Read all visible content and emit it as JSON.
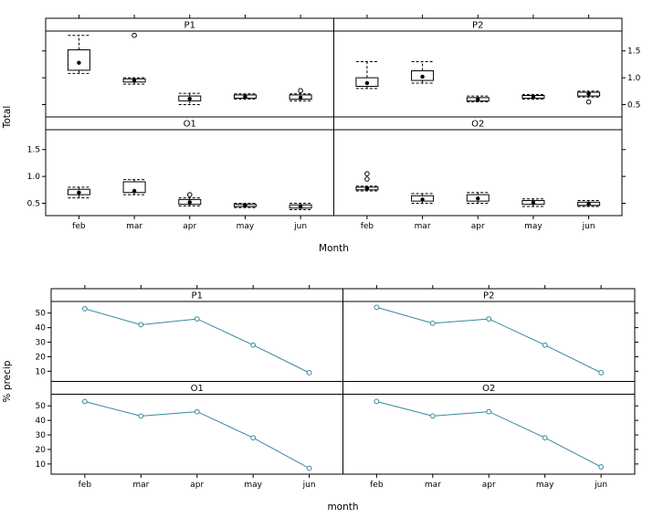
{
  "page": {
    "background": "#ffffff"
  },
  "colors": {
    "frame": "#000000",
    "box_stroke": "#000000",
    "line": "#35889e"
  },
  "chart_data": [
    {
      "type": "bar",
      "subtype": "lattice-boxplot",
      "title": "",
      "xlabel": "Month",
      "ylabel": "Total",
      "categories": [
        "feb",
        "mar",
        "apr",
        "may",
        "jun"
      ],
      "ylim": [
        0.27,
        1.87
      ],
      "yticks": [
        0.5,
        1.0,
        1.5
      ],
      "grid": "off",
      "legend": "none",
      "panel_grid": [
        [
          "P1",
          "P2"
        ],
        [
          "O1",
          "O2"
        ]
      ],
      "panels": {
        "P1": {
          "boxes": [
            {
              "q1": 1.14,
              "q3": 1.52,
              "median": 1.28,
              "lo": 1.08,
              "hi": 1.79,
              "outliers": []
            },
            {
              "q1": 0.92,
              "q3": 0.98,
              "median": 0.95,
              "lo": 0.88,
              "hi": 1.0,
              "outliers": [
                1.79
              ]
            },
            {
              "q1": 0.57,
              "q3": 0.66,
              "median": 0.61,
              "lo": 0.5,
              "hi": 0.71,
              "outliers": []
            },
            {
              "q1": 0.62,
              "q3": 0.68,
              "median": 0.65,
              "lo": 0.6,
              "hi": 0.7,
              "outliers": []
            },
            {
              "q1": 0.6,
              "q3": 0.68,
              "median": 0.63,
              "lo": 0.57,
              "hi": 0.7,
              "outliers": [
                0.76
              ]
            }
          ]
        },
        "P2": {
          "boxes": [
            {
              "q1": 0.84,
              "q3": 1.0,
              "median": 0.9,
              "lo": 0.8,
              "hi": 1.3,
              "outliers": []
            },
            {
              "q1": 0.95,
              "q3": 1.13,
              "median": 1.02,
              "lo": 0.9,
              "hi": 1.3,
              "outliers": []
            },
            {
              "q1": 0.57,
              "q3": 0.63,
              "median": 0.6,
              "lo": 0.55,
              "hi": 0.66,
              "outliers": []
            },
            {
              "q1": 0.62,
              "q3": 0.67,
              "median": 0.64,
              "lo": 0.6,
              "hi": 0.69,
              "outliers": []
            },
            {
              "q1": 0.66,
              "q3": 0.73,
              "median": 0.7,
              "lo": 0.64,
              "hi": 0.75,
              "outliers": [
                0.55
              ]
            }
          ]
        },
        "O1": {
          "boxes": [
            {
              "q1": 0.66,
              "q3": 0.76,
              "median": 0.7,
              "lo": 0.6,
              "hi": 0.8,
              "outliers": []
            },
            {
              "q1": 0.7,
              "q3": 0.9,
              "median": 0.73,
              "lo": 0.66,
              "hi": 0.94,
              "outliers": []
            },
            {
              "q1": 0.48,
              "q3": 0.57,
              "median": 0.52,
              "lo": 0.45,
              "hi": 0.6,
              "outliers": [
                0.66
              ]
            },
            {
              "q1": 0.44,
              "q3": 0.48,
              "median": 0.46,
              "lo": 0.42,
              "hi": 0.5,
              "outliers": []
            },
            {
              "q1": 0.41,
              "q3": 0.47,
              "median": 0.44,
              "lo": 0.38,
              "hi": 0.5,
              "outliers": []
            }
          ]
        },
        "O2": {
          "boxes": [
            {
              "q1": 0.75,
              "q3": 0.8,
              "median": 0.78,
              "lo": 0.73,
              "hi": 0.82,
              "outliers": [
                1.05,
                0.95
              ]
            },
            {
              "q1": 0.54,
              "q3": 0.64,
              "median": 0.57,
              "lo": 0.5,
              "hi": 0.68,
              "outliers": []
            },
            {
              "q1": 0.54,
              "q3": 0.66,
              "median": 0.59,
              "lo": 0.5,
              "hi": 0.7,
              "outliers": []
            },
            {
              "q1": 0.48,
              "q3": 0.55,
              "median": 0.51,
              "lo": 0.44,
              "hi": 0.58,
              "outliers": []
            },
            {
              "q1": 0.46,
              "q3": 0.52,
              "median": 0.49,
              "lo": 0.44,
              "hi": 0.55,
              "outliers": []
            }
          ]
        }
      }
    },
    {
      "type": "line",
      "subtype": "lattice-xyplot",
      "title": "",
      "xlabel": "month",
      "ylabel": "% precip",
      "categories": [
        "feb",
        "mar",
        "apr",
        "may",
        "jun"
      ],
      "ylim": [
        3,
        58
      ],
      "yticks": [
        10,
        20,
        30,
        40,
        50
      ],
      "grid": "off",
      "legend": "none",
      "line_color": "#35889e",
      "panel_grid": [
        [
          "P1",
          "P2"
        ],
        [
          "O1",
          "O2"
        ]
      ],
      "panels": {
        "P1": {
          "values": [
            53,
            42,
            46,
            28,
            9
          ]
        },
        "P2": {
          "values": [
            54,
            43,
            46,
            28,
            9
          ]
        },
        "O1": {
          "values": [
            53,
            43,
            46,
            28,
            7
          ]
        },
        "O2": {
          "values": [
            53,
            43,
            46,
            28,
            8
          ]
        }
      }
    }
  ]
}
